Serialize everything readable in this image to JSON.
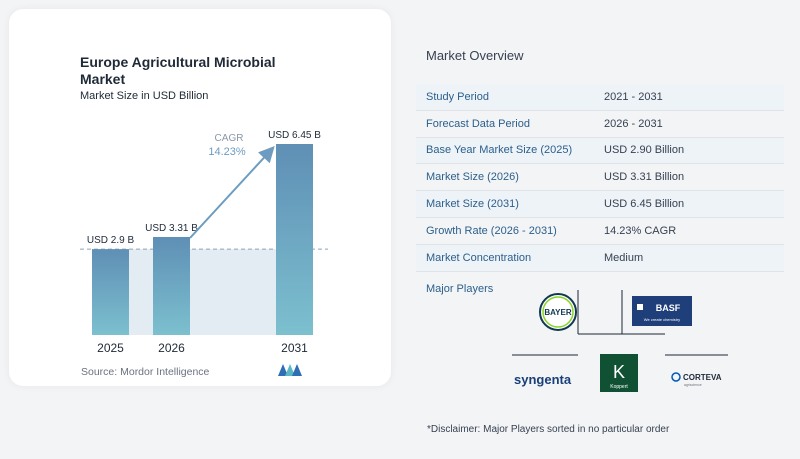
{
  "chart": {
    "title": "Europe Agricultural Microbial Market",
    "subtitle": "Market Size in USD Billion",
    "source": "Source:  Mordor Intelligence",
    "cagr_label": "CAGR",
    "cagr_value": "14.23%"
  },
  "chart_data": {
    "type": "bar",
    "categories": [
      "2025",
      "2026",
      "2031"
    ],
    "values": [
      2.9,
      3.31,
      6.45
    ],
    "data_labels": [
      "USD 2.9 B",
      "USD 3.31 B",
      "USD 6.45 B"
    ],
    "title": "Europe Agricultural Microbial Market",
    "subtitle": "Market Size in USD Billion",
    "xlabel": "",
    "ylabel": "",
    "ylim": [
      0,
      6.45
    ],
    "grid": false,
    "reference_line_value": 2.9,
    "annotation": "CAGR 14.23%",
    "colors": {
      "bar_top": "#5f8fb5",
      "bar_bottom": "#7cc0cf",
      "arrow": "#6d9cc0",
      "band": "#e3ebf3"
    }
  },
  "overview": {
    "title": "Market Overview",
    "rows": [
      {
        "label": "Study Period",
        "value": "2021 - 2031"
      },
      {
        "label": "Forecast Data Period",
        "value": "2026 - 2031"
      },
      {
        "label": "Base Year Market Size (2025)",
        "value": "USD 2.90 Billion"
      },
      {
        "label": "Market Size (2026)",
        "value": "USD 3.31 Billion"
      },
      {
        "label": "Market Size (2031)",
        "value": "USD 6.45 Billion"
      },
      {
        "label": "Growth Rate (2026 - 2031)",
        "value": "14.23% CAGR"
      },
      {
        "label": "Market Concentration",
        "value": "Medium"
      }
    ]
  },
  "players": {
    "title": "Major Players",
    "bayer": "BAYER",
    "basf": "BASF",
    "basf_tagline": "We create chemistry",
    "syngenta": "syngenta",
    "koppert": "K",
    "koppert_name": "Koppert",
    "corteva": "CORTEVA",
    "corteva_tagline": "agriscience"
  },
  "disclaimer": "*Disclaimer: Major Players sorted in no particular order"
}
